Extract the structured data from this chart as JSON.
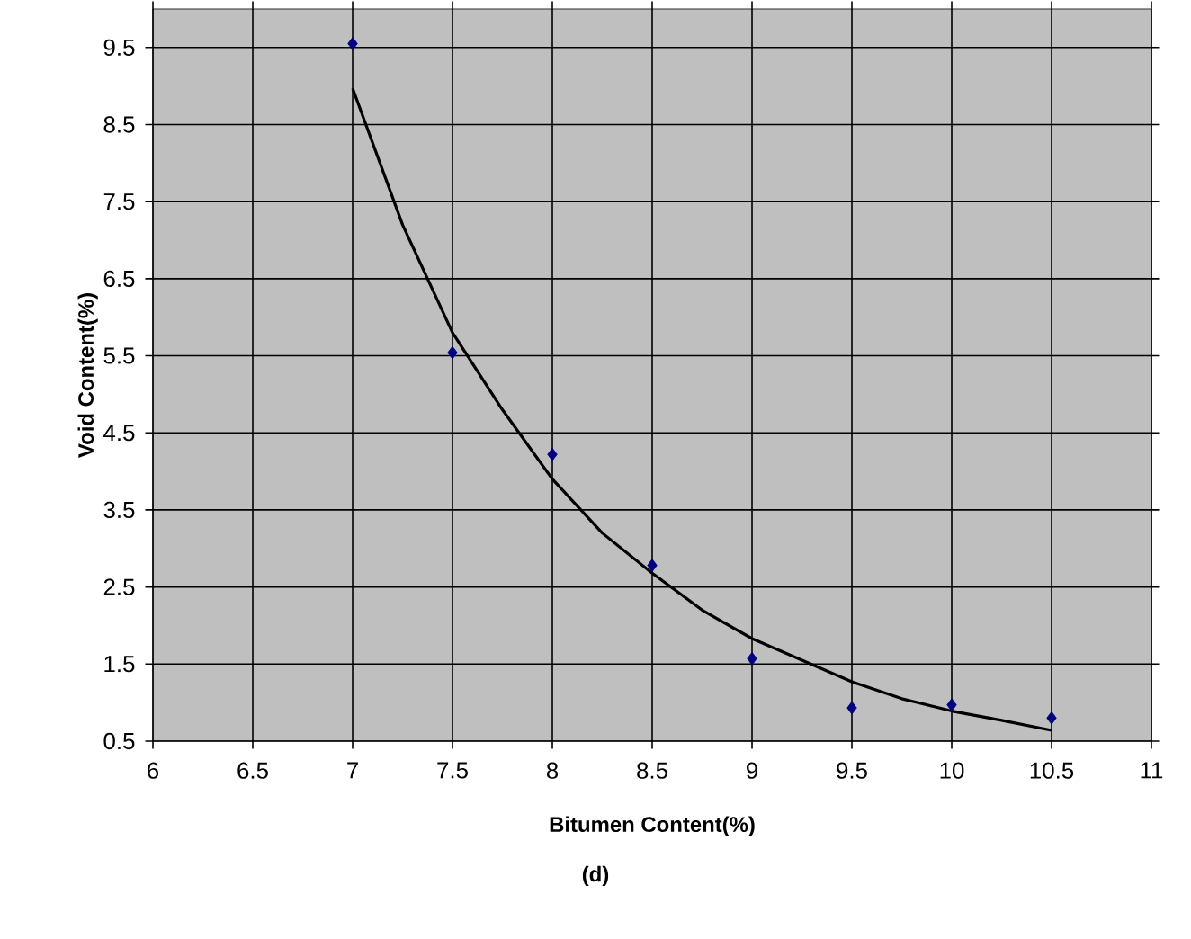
{
  "chart_data": {
    "type": "scatter",
    "xlabel": "Bitumen Content(%)",
    "ylabel": "Void Content(%)",
    "annotations": [
      "(d)"
    ],
    "xlim": [
      6,
      11
    ],
    "xticks": [
      6,
      6.5,
      7,
      7.5,
      8,
      8.5,
      9,
      9.5,
      10,
      10.5,
      11
    ],
    "ylim": [
      0.5,
      10
    ],
    "yticks": [
      0.5,
      1.5,
      2.5,
      3.5,
      4.5,
      5.5,
      6.5,
      7.5,
      8.5,
      9.5
    ],
    "grid": true,
    "marker": "diamond",
    "series": [
      {
        "color": "#000080",
        "x": [
          7,
          7.5,
          8,
          8.5,
          9,
          9.5,
          10,
          10.5
        ],
        "values": [
          9.55,
          5.54,
          4.22,
          2.78,
          1.57,
          0.93,
          0.97,
          0.8
        ]
      },
      {
        "type": "line",
        "marker": "none",
        "color": "#000000",
        "x": [
          7,
          7.25,
          7.5,
          7.75,
          8,
          8.25,
          8.5,
          8.75,
          9,
          9.25,
          9.5,
          9.75,
          10,
          10.25,
          10.5
        ],
        "values": [
          8.97,
          7.2,
          5.8,
          4.8,
          3.9,
          3.2,
          2.68,
          2.2,
          1.83,
          1.55,
          1.27,
          1.05,
          0.89,
          0.77,
          0.64
        ]
      }
    ]
  }
}
